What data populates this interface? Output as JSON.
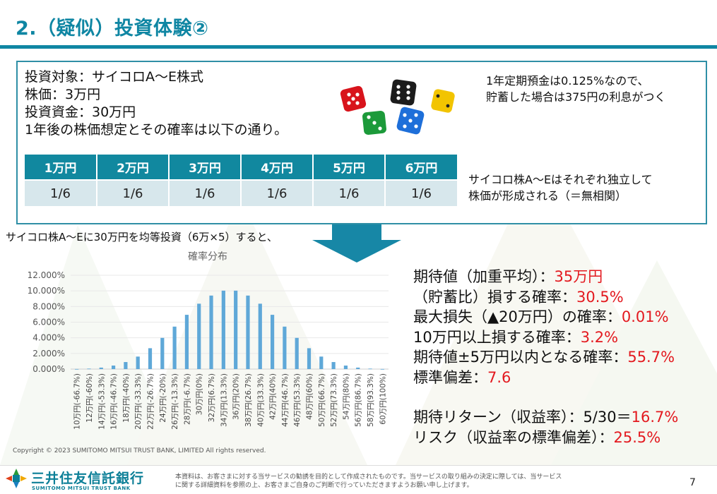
{
  "header": {
    "title": "2.（疑似）投資体験②"
  },
  "info": {
    "lines": [
      "投資対象：サイコロA～E株式",
      "株価：3万円",
      "投資資金：30万円",
      "1年後の株価想定とその確率は以下の通り。"
    ]
  },
  "note_deposit": {
    "line1": "1年定期預金は0.125%なので、",
    "line2": "貯蓄した場合は375円の利息がつく"
  },
  "note_independent": {
    "line1": "サイコロ株A～Eはそれぞれ独立して",
    "line2": "株価が形成される（＝無相関）"
  },
  "price_table": {
    "headers": [
      "1万円",
      "2万円",
      "3万円",
      "4万円",
      "5万円",
      "6万円"
    ],
    "values": [
      "1/6",
      "1/6",
      "1/6",
      "1/6",
      "1/6",
      "1/6"
    ]
  },
  "lead_text": "サイコロ株A～Eに30万円を均等投資（6万×5）すると、",
  "dice_colors": [
    "#d8141c",
    "#1c1c1c",
    "#f2c400",
    "#1c9a3a",
    "#1e6fd9"
  ],
  "chart_data": {
    "type": "bar",
    "title": "確率分布",
    "color": "#5fa8d8",
    "ylim": [
      0,
      12
    ],
    "yticks": [
      "0.000%",
      "2.000%",
      "4.000%",
      "6.000%",
      "8.000%",
      "10.000%",
      "12.000%"
    ],
    "categories": [
      "10万円(-66.7%)",
      "12万円(-60%)",
      "14万円(-53.3%)",
      "16万円(-46.7%)",
      "18万円(-40%)",
      "20万円(-33.3%)",
      "22万円(-26.7%)",
      "24万円(-20%)",
      "26万円(-13.3%)",
      "28万円(-6.7%)",
      "30万円(0%)",
      "32万円(6.7%)",
      "34万円(13.3%)",
      "36万円(20%)",
      "38万円(26.7%)",
      "40万円(33.3%)",
      "42万円(40%)",
      "44万円(46.7%)",
      "46万円(53.3%)",
      "48万円(60%)",
      "50万円(66.7%)",
      "52万円(73.3%)",
      "54万円(80%)",
      "56万円(86.7%)",
      "58万円(93.3%)",
      "60万円(100%)"
    ],
    "values": [
      0.01,
      0.06,
      0.19,
      0.45,
      0.9,
      1.6,
      2.67,
      3.99,
      5.43,
      6.94,
      8.36,
      9.4,
      10.03,
      10.03,
      9.4,
      8.36,
      6.94,
      5.43,
      3.99,
      2.67,
      1.6,
      0.9,
      0.45,
      0.19,
      0.06,
      0.01
    ]
  },
  "copyright": "Copyright © 2023 SUMITOMO MITSUI TRUST BANK, LIMITED All rights reserved.",
  "stats": [
    {
      "label": "期待値（加重平均）：",
      "value": "35万円"
    },
    {
      "label": "（貯蓄比）損する確率：",
      "value": "30.5%"
    },
    {
      "label": "最大損失（▲20万円）の確率：",
      "value": "0.01%"
    },
    {
      "label": "10万円以上損する確率：",
      "value": "3.2%"
    },
    {
      "label": "期待値±5万円以内となる確率：",
      "value": "55.7%"
    },
    {
      "label": "標準偏差：",
      "value": "7.6"
    }
  ],
  "returns": [
    {
      "label": "期待リターン（収益率）：5/30＝",
      "value": "16.7%"
    },
    {
      "label": "リスク（収益率の標準偏差）：",
      "value": "25.5%"
    }
  ],
  "footer": {
    "company": "三井住友信託銀行",
    "company_en": "SUMITOMO MITSUI TRUST BANK",
    "disclaimer_line1": "本資料は、お客さまに対する当サービスの勧誘を目的として作成されたものです。当サービスの取り組みの決定に際しては、当サービス",
    "disclaimer_line2": "に関する詳細資料を参照の上、お客さまご自身のご判断で行っていただきますようお願い申し上げます。",
    "page": "7"
  },
  "colors": {
    "accent": "#0f86a3",
    "table_header": "#11889f",
    "table_cell": "#d7e7ec",
    "highlight": "#e3191f"
  }
}
